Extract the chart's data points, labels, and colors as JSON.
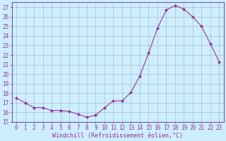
{
  "x": [
    0,
    1,
    2,
    3,
    4,
    5,
    6,
    7,
    8,
    9,
    10,
    11,
    12,
    13,
    14,
    15,
    16,
    17,
    18,
    19,
    20,
    21,
    22,
    23
  ],
  "y": [
    17.5,
    17.0,
    16.5,
    16.5,
    16.2,
    16.2,
    16.1,
    15.8,
    15.5,
    15.7,
    16.5,
    17.2,
    17.2,
    18.1,
    19.8,
    22.2,
    24.8,
    26.7,
    27.2,
    26.8,
    26.0,
    25.0,
    23.2,
    21.3
  ],
  "line_color": "#993399",
  "marker": "D",
  "marker_size": 2.0,
  "bg_color": "#cceeff",
  "grid_color": "#aabbcc",
  "xlabel": "Windchill (Refroidissement éolien,°C)",
  "ylim_min": 15,
  "ylim_max": 27.5,
  "yticks": [
    15,
    16,
    17,
    18,
    19,
    20,
    21,
    22,
    23,
    24,
    25,
    26,
    27
  ],
  "xticks": [
    0,
    1,
    2,
    3,
    4,
    5,
    6,
    7,
    8,
    9,
    10,
    11,
    12,
    13,
    14,
    15,
    16,
    17,
    18,
    19,
    20,
    21,
    22,
    23
  ],
  "xlim_min": -0.5,
  "xlim_max": 23.5,
  "spine_color": "#7755aa",
  "tick_fontsize": 5.5,
  "xlabel_fontsize": 6.0
}
